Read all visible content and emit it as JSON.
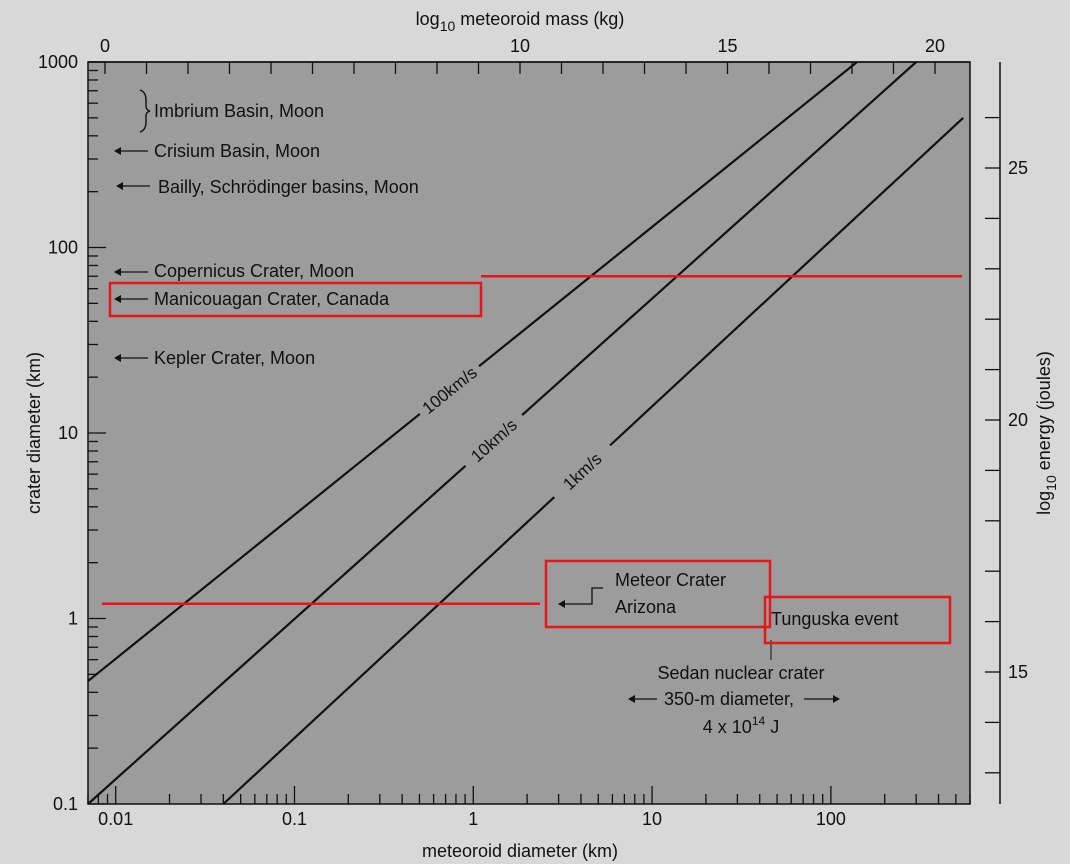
{
  "chart_data": {
    "type": "line",
    "title": "",
    "xlabel": "meteoroid diameter (km)",
    "ylabel": "crater diameter (km)",
    "x_scale": "log",
    "y_scale": "log",
    "xlim": [
      0.007,
      600
    ],
    "ylim": [
      0.1,
      1000
    ],
    "x_ticks": [
      {
        "value": 0.01,
        "label": "0.01"
      },
      {
        "value": 0.1,
        "label": "0.1"
      },
      {
        "value": 1,
        "label": "1"
      },
      {
        "value": 10,
        "label": "10"
      },
      {
        "value": 100,
        "label": "100"
      }
    ],
    "y_ticks": [
      {
        "value": 0.1,
        "label": "0.1"
      },
      {
        "value": 1,
        "label": "1"
      },
      {
        "value": 10,
        "label": "10"
      },
      {
        "value": 100,
        "label": "100"
      },
      {
        "value": 1000,
        "label": "1000"
      }
    ],
    "top_axis": {
      "label_parts": [
        "log",
        "10",
        " meteoroid mass (kg)"
      ],
      "ticks": [
        {
          "value": 0,
          "label": "0"
        },
        {
          "value": 10,
          "label": "10"
        },
        {
          "value": 15,
          "label": "15"
        },
        {
          "value": 20,
          "label": "20"
        }
      ]
    },
    "right_axis": {
      "label_parts": [
        "log",
        "10",
        " energy (joules)"
      ],
      "ticks": [
        {
          "value": 15,
          "label": "15"
        },
        {
          "value": 20,
          "label": "20"
        },
        {
          "value": 25,
          "label": "25"
        }
      ]
    },
    "series": [
      {
        "name": "100km/s",
        "x": [
          0.007,
          140
        ],
        "y": [
          0.46,
          1000
        ]
      },
      {
        "name": "10km/s",
        "x": [
          0.007,
          300
        ],
        "y": [
          0.1,
          1000
        ]
      },
      {
        "name": "1km/s",
        "x": [
          0.04,
          550
        ],
        "y": [
          0.1,
          500
        ]
      }
    ],
    "annotations": [
      {
        "text": "Imbrium Basin, Moon",
        "y": 900
      },
      {
        "text": "Crisium Basin, Moon",
        "y": 500
      },
      {
        "text": "Bailly, Schrödinger basins, Moon",
        "y": 300
      },
      {
        "text": "Copernicus Crater, Moon",
        "y": 95
      },
      {
        "text": "Manicouagan Crater, Canada",
        "y": 70
      },
      {
        "text": "Kepler Crater, Moon",
        "y": 32
      },
      {
        "text": "Meteor Crater",
        "y": 1.5
      },
      {
        "text": "Arizona",
        "y": 1.2
      },
      {
        "text": "Tunguska event",
        "y": 1.0
      },
      {
        "text": "Sedan nuclear crater",
        "y": 0.5
      },
      {
        "text": "350-m diameter,",
        "y": 0.35
      },
      {
        "text": "4 x 10",
        "sup": "14",
        "suffix": " J",
        "y": 0.24
      }
    ],
    "highlight_lines": [
      {
        "y": 70,
        "color": "#e8141a"
      },
      {
        "y": 1.2,
        "color": "#e8141a"
      }
    ],
    "grid": false,
    "legend": "none"
  }
}
